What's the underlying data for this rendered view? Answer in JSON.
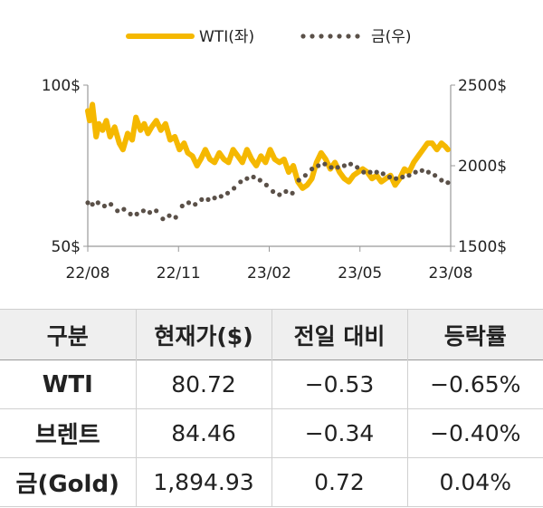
{
  "chart_data": {
    "type": "line",
    "legend_position": "top-center",
    "grid": false,
    "x_ticks": [
      "22/08",
      "22/11",
      "23/02",
      "23/05",
      "23/08"
    ],
    "x_range": [
      "2022-08",
      "2023-08"
    ],
    "y_left": {
      "ticks": [
        "100$",
        "50$"
      ],
      "ylim": [
        50,
        100
      ]
    },
    "y_right": {
      "ticks": [
        "2500$",
        "2000$",
        "1500$"
      ],
      "ylim": [
        1500,
        2500
      ]
    },
    "series": [
      {
        "name": "WTI(좌)",
        "axis": "left",
        "style": "solid",
        "color": "#f5b800",
        "x": [
          "2022-08-01",
          "2022-08-03",
          "2022-08-06",
          "2022-08-10",
          "2022-08-13",
          "2022-08-17",
          "2022-08-21",
          "2022-08-25",
          "2022-08-30",
          "2022-09-04",
          "2022-09-08",
          "2022-09-13",
          "2022-09-18",
          "2022-09-22",
          "2022-09-27",
          "2022-10-01",
          "2022-10-05",
          "2022-10-09",
          "2022-10-14",
          "2022-10-19",
          "2022-10-24",
          "2022-10-29",
          "2022-11-03",
          "2022-11-08",
          "2022-11-13",
          "2022-11-17",
          "2022-11-22",
          "2022-11-27",
          "2022-12-01",
          "2022-12-06",
          "2022-12-11",
          "2022-12-16",
          "2022-12-21",
          "2022-12-26",
          "2022-12-31",
          "2023-01-05",
          "2023-01-10",
          "2023-01-15",
          "2023-01-20",
          "2023-01-25",
          "2023-01-30",
          "2023-02-04",
          "2023-02-09",
          "2023-02-14",
          "2023-02-19",
          "2023-02-24",
          "2023-03-01",
          "2023-03-06",
          "2023-03-11",
          "2023-03-16",
          "2023-03-21",
          "2023-03-26",
          "2023-03-31",
          "2023-04-05",
          "2023-04-10",
          "2023-04-15",
          "2023-04-20",
          "2023-04-25",
          "2023-04-30",
          "2023-05-05",
          "2023-05-10",
          "2023-05-15",
          "2023-05-20",
          "2023-05-25",
          "2023-05-30",
          "2023-06-04",
          "2023-06-09",
          "2023-06-14",
          "2023-06-19",
          "2023-06-24",
          "2023-06-29",
          "2023-07-04",
          "2023-07-09",
          "2023-07-14",
          "2023-07-19",
          "2023-07-24",
          "2023-07-29",
          "2023-08-03",
          "2023-08-08",
          "2023-08-13",
          "2023-08-18",
          "2023-08-22",
          "2023-08-25"
        ],
        "values": [
          92,
          89,
          94,
          84,
          88,
          86,
          89,
          84,
          87,
          82,
          80,
          85,
          83,
          90,
          86,
          88,
          85,
          87,
          89,
          86,
          88,
          83,
          84,
          80,
          82,
          79,
          78,
          75,
          77,
          80,
          77,
          76,
          79,
          77,
          76,
          80,
          78,
          76,
          80,
          77,
          75,
          78,
          76,
          80,
          77,
          76,
          77,
          73,
          75,
          70,
          68,
          69,
          71,
          76,
          79,
          77,
          74,
          76,
          73,
          71,
          70,
          72,
          73,
          74,
          73,
          71,
          72,
          70,
          71,
          72,
          69,
          71,
          74,
          73,
          76,
          78,
          80,
          82,
          82,
          80,
          82,
          81,
          80
        ]
      },
      {
        "name": "금(우)",
        "axis": "right",
        "style": "dotted",
        "color": "#5a5048",
        "x": [
          "2022-08-01",
          "2022-08-06",
          "2022-08-12",
          "2022-08-19",
          "2022-08-26",
          "2022-09-02",
          "2022-09-09",
          "2022-09-16",
          "2022-09-23",
          "2022-09-30",
          "2022-10-07",
          "2022-10-14",
          "2022-10-21",
          "2022-10-28",
          "2022-11-04",
          "2022-11-11",
          "2022-11-18",
          "2022-11-25",
          "2022-12-02",
          "2022-12-09",
          "2022-12-16",
          "2022-12-23",
          "2022-12-30",
          "2023-01-06",
          "2023-01-13",
          "2023-01-20",
          "2023-01-27",
          "2023-02-03",
          "2023-02-10",
          "2023-02-17",
          "2023-02-24",
          "2023-03-03",
          "2023-03-10",
          "2023-03-17",
          "2023-03-24",
          "2023-03-31",
          "2023-04-07",
          "2023-04-14",
          "2023-04-21",
          "2023-04-28",
          "2023-05-05",
          "2023-05-12",
          "2023-05-19",
          "2023-05-26",
          "2023-06-02",
          "2023-06-09",
          "2023-06-16",
          "2023-06-23",
          "2023-06-30",
          "2023-07-07",
          "2023-07-14",
          "2023-07-21",
          "2023-07-28",
          "2023-08-04",
          "2023-08-11",
          "2023-08-18",
          "2023-08-25"
        ],
        "values": [
          1770,
          1760,
          1770,
          1750,
          1760,
          1720,
          1730,
          1700,
          1700,
          1720,
          1710,
          1720,
          1670,
          1690,
          1680,
          1750,
          1770,
          1760,
          1790,
          1790,
          1800,
          1810,
          1830,
          1860,
          1900,
          1920,
          1930,
          1910,
          1880,
          1840,
          1820,
          1840,
          1830,
          1910,
          1940,
          1980,
          2000,
          2010,
          1990,
          1990,
          2000,
          2010,
          1990,
          1960,
          1960,
          1960,
          1950,
          1930,
          1920,
          1930,
          1940,
          1960,
          1970,
          1960,
          1940,
          1910,
          1895
        ]
      }
    ]
  },
  "table": {
    "headers": [
      "구분",
      "현재가($)",
      "전일 대비",
      "등락률"
    ],
    "rows": [
      {
        "name": "WTI",
        "price": "80.72",
        "change": "−0.53",
        "rate": "−0.65%"
      },
      {
        "name": "브렌트",
        "price": "84.46",
        "change": "−0.34",
        "rate": "−0.40%"
      },
      {
        "name": "금(Gold)",
        "price": "1,894.93",
        "change": "0.72",
        "rate": "0.04%"
      }
    ]
  }
}
